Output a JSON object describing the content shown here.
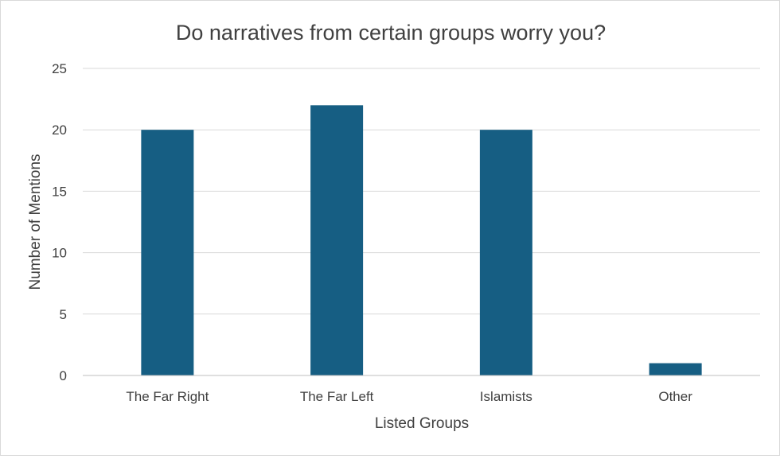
{
  "chart_data": {
    "type": "bar",
    "title": "Do narratives from certain groups worry you?",
    "categories": [
      "The Far Right",
      "The Far Left",
      "Islamists",
      "Other"
    ],
    "series": [
      {
        "name": "Number of Mentions",
        "values": [
          20,
          22,
          20,
          1
        ],
        "color": "#165e83"
      }
    ],
    "xlabel": "Listed Groups",
    "ylabel": "Number of Mentions",
    "ylim": [
      0,
      25
    ],
    "yticks": [
      0,
      5,
      10,
      15,
      20,
      25
    ],
    "grid": true,
    "legend": "none"
  }
}
